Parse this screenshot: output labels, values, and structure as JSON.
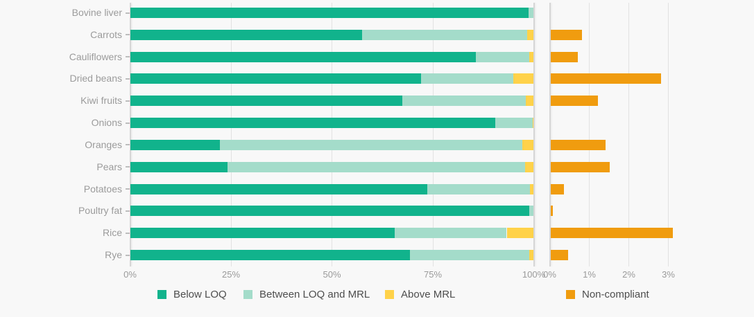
{
  "chart_data": {
    "type": "bar",
    "orientation": "horizontal",
    "stacked": true,
    "title": "",
    "categories": [
      "Bovine liver",
      "Carrots",
      "Cauliflowers",
      "Dried beans",
      "Kiwi fruits",
      "Onions",
      "Oranges",
      "Pears",
      "Potatoes",
      "Poultry fat",
      "Rice",
      "Rye"
    ],
    "series": [
      {
        "name": "Below LOQ",
        "color": "#11b38c",
        "values": [
          98.7,
          57.4,
          85.6,
          72.0,
          67.5,
          90.4,
          22.3,
          24.2,
          73.7,
          98.8,
          65.5,
          69.4
        ]
      },
      {
        "name": "Between LOQ and MRL",
        "color": "#a4dcca",
        "values": [
          1.3,
          40.9,
          13.2,
          23.0,
          30.5,
          9.3,
          74.9,
          73.6,
          25.3,
          1.2,
          27.8,
          29.4
        ]
      },
      {
        "name": "Above MRL",
        "color": "#ffd24a",
        "values": [
          0,
          1.7,
          1.2,
          5.0,
          2.0,
          0.3,
          2.8,
          2.2,
          1.0,
          0,
          6.7,
          1.2
        ]
      }
    ],
    "secondary_series": {
      "name": "Non-compliant",
      "color": "#f09c0f",
      "values": [
        0,
        0.8,
        0.7,
        2.8,
        1.2,
        0,
        1.4,
        1.5,
        0.35,
        0.07,
        3.1,
        0.45
      ]
    },
    "left_axis": {
      "tick_labels": [
        "0%",
        "25%",
        "50%",
        "75%",
        "100%"
      ],
      "tick_values": [
        0,
        25,
        50,
        75,
        100
      ],
      "range": [
        0,
        100
      ],
      "grid": true
    },
    "right_axis": {
      "tick_labels": [
        "0%",
        "1%",
        "2%",
        "3%"
      ],
      "tick_values": [
        0,
        1,
        2,
        3
      ],
      "range": [
        0,
        3.2
      ],
      "grid": true
    },
    "legend": {
      "position": "bottom",
      "items": [
        {
          "label": "Below LOQ",
          "color": "#11b38c"
        },
        {
          "label": "Between LOQ and MRL",
          "color": "#a4dcca"
        },
        {
          "label": "Above MRL",
          "color": "#ffd24a"
        },
        {
          "label": "Non-compliant",
          "color": "#f09c0f"
        }
      ]
    },
    "colors": {
      "background": "#f8f8f8",
      "gridline": "#e2e2e2",
      "axis_line": "#d6d6d6",
      "category_text": "#9b9b9b",
      "tick_text": "#9a9a9a",
      "legend_text": "#4d4d4d"
    }
  }
}
